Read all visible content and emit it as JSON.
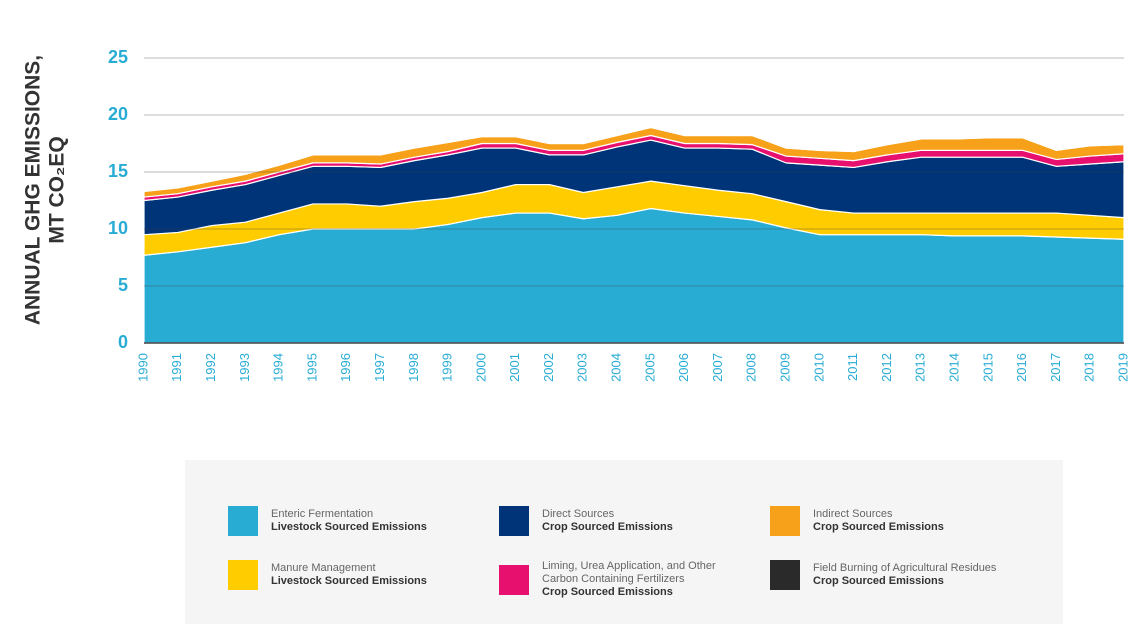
{
  "chart_data": {
    "type": "area",
    "stacked": true,
    "y_label": [
      "ANNUAL GHG EMISSIONS,",
      "MT CO₂EQ"
    ],
    "x": [
      1990,
      1991,
      1992,
      1993,
      1994,
      1995,
      1996,
      1997,
      1998,
      1999,
      2000,
      2001,
      2002,
      2003,
      2004,
      2005,
      2006,
      2007,
      2008,
      2009,
      2010,
      2011,
      2012,
      2013,
      2014,
      2015,
      2016,
      2017,
      2018,
      2019
    ],
    "xlim": [
      1990,
      2019
    ],
    "ylim": [
      0,
      25
    ],
    "yticks": [
      0,
      5,
      10,
      15,
      20,
      25
    ],
    "grid": true,
    "series": [
      {
        "name": "Enteric Fermentation",
        "group": "Livestock Sourced Emissions",
        "color": "#29acd4",
        "values": [
          7.7,
          8.0,
          8.4,
          8.8,
          9.5,
          10.0,
          10.0,
          10.0,
          10.0,
          10.4,
          11.0,
          11.4,
          11.4,
          10.9,
          11.2,
          11.8,
          11.4,
          11.1,
          10.8,
          10.1,
          9.5,
          9.5,
          9.5,
          9.5,
          9.4,
          9.4,
          9.4,
          9.3,
          9.2,
          9.1
        ]
      },
      {
        "name": "Manure Management",
        "group": "Livestock Sourced Emissions",
        "color": "#ffcc00",
        "values": [
          1.8,
          1.7,
          1.9,
          1.8,
          1.9,
          2.2,
          2.2,
          2.0,
          2.4,
          2.3,
          2.2,
          2.5,
          2.5,
          2.3,
          2.5,
          2.4,
          2.4,
          2.3,
          2.3,
          2.3,
          2.2,
          1.9,
          1.9,
          1.9,
          2.0,
          2.0,
          2.0,
          2.1,
          2.0,
          1.9
        ]
      },
      {
        "name": "Direct Sources",
        "group": "Crop Sourced Emissions",
        "color": "#003478",
        "values": [
          3.0,
          3.1,
          3.1,
          3.3,
          3.3,
          3.3,
          3.3,
          3.4,
          3.6,
          3.8,
          3.9,
          3.2,
          2.6,
          3.3,
          3.5,
          3.6,
          3.3,
          3.7,
          3.9,
          3.4,
          3.9,
          4.0,
          4.5,
          4.9,
          4.9,
          4.9,
          4.9,
          4.1,
          4.5,
          4.9
        ]
      },
      {
        "name": "Liming, Urea Application, and Other Carbon Containing Fertilizers",
        "group": "Crop Sourced Emissions",
        "color": "#e8106f",
        "values": [
          0.3,
          0.3,
          0.3,
          0.3,
          0.3,
          0.3,
          0.3,
          0.3,
          0.3,
          0.3,
          0.4,
          0.4,
          0.4,
          0.4,
          0.4,
          0.4,
          0.4,
          0.4,
          0.4,
          0.6,
          0.6,
          0.6,
          0.6,
          0.6,
          0.6,
          0.6,
          0.6,
          0.6,
          0.7,
          0.7
        ]
      },
      {
        "name": "Indirect Sources",
        "group": "Crop Sourced Emissions",
        "color": "#f7a11a",
        "values": [
          0.5,
          0.5,
          0.5,
          0.6,
          0.6,
          0.7,
          0.7,
          0.8,
          0.8,
          0.8,
          0.6,
          0.6,
          0.6,
          0.6,
          0.6,
          0.7,
          0.7,
          0.7,
          0.8,
          0.7,
          0.7,
          0.8,
          0.9,
          1.0,
          1.0,
          1.1,
          1.1,
          0.8,
          0.9,
          0.8
        ]
      },
      {
        "name": "Field Burning of Agricultural Residues",
        "group": "Crop Sourced Emissions",
        "color": "#2a2a2a",
        "values": [
          0.02,
          0.02,
          0.02,
          0.02,
          0.02,
          0.02,
          0.02,
          0.02,
          0.02,
          0.02,
          0.02,
          0.02,
          0.02,
          0.02,
          0.02,
          0.02,
          0.02,
          0.02,
          0.02,
          0.02,
          0.02,
          0.02,
          0.02,
          0.02,
          0.02,
          0.02,
          0.02,
          0.02,
          0.02,
          0.02
        ]
      }
    ],
    "legend_order": [
      0,
      2,
      4,
      1,
      3,
      5
    ]
  }
}
